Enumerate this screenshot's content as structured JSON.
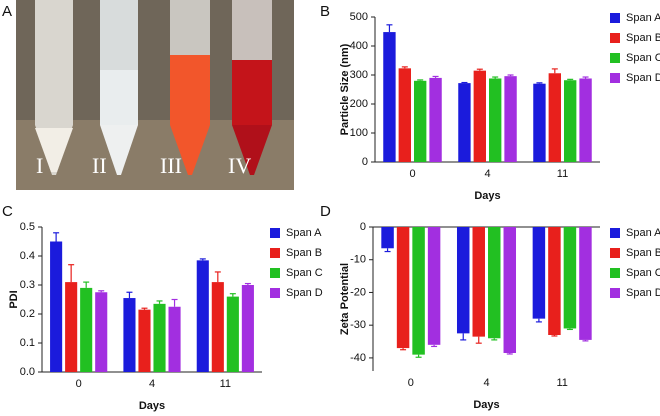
{
  "photo": {
    "panel_label": "A",
    "tube_labels": [
      "I",
      "II",
      "III",
      "IV"
    ]
  },
  "chart_data": [
    {
      "type": "bar",
      "panel_label": "B",
      "ylabel": "Particle Size (nm)",
      "xlabel": "Days",
      "categories": [
        "0",
        "4",
        "11"
      ],
      "ylim": [
        0,
        500
      ],
      "yticks": [
        0,
        100,
        200,
        300,
        400,
        500
      ],
      "series": [
        {
          "name": "Span A",
          "color": "#1b1bdc",
          "values": [
            448,
            272,
            270
          ],
          "errors": [
            25,
            2,
            3
          ]
        },
        {
          "name": "Span B",
          "color": "#e8201c",
          "values": [
            323,
            315,
            306
          ],
          "errors": [
            5,
            5,
            15
          ]
        },
        {
          "name": "Span C",
          "color": "#22c022",
          "values": [
            280,
            288,
            282
          ],
          "errors": [
            3,
            5,
            3
          ]
        },
        {
          "name": "Span D",
          "color": "#a22fe0",
          "values": [
            290,
            296,
            288
          ],
          "errors": [
            5,
            4,
            5
          ]
        }
      ]
    },
    {
      "type": "bar",
      "panel_label": "C",
      "ylabel": "PDI",
      "xlabel": "Days",
      "categories": [
        "0",
        "4",
        "11"
      ],
      "ylim": [
        0,
        0.5
      ],
      "yticks": [
        {
          "value": 0,
          "label": "0.0"
        },
        0.1,
        0.2,
        0.3,
        0.4,
        0.5
      ],
      "series": [
        {
          "name": "Span A",
          "color": "#1b1bdc",
          "values": [
            0.45,
            0.255,
            0.385
          ],
          "errors": [
            0.03,
            0.02,
            0.005
          ]
        },
        {
          "name": "Span B",
          "color": "#e8201c",
          "values": [
            0.31,
            0.215,
            0.31
          ],
          "errors": [
            0.06,
            0.005,
            0.035
          ]
        },
        {
          "name": "Span C",
          "color": "#22c022",
          "values": [
            0.29,
            0.235,
            0.26
          ],
          "errors": [
            0.02,
            0.01,
            0.01
          ]
        },
        {
          "name": "Span D",
          "color": "#a22fe0",
          "values": [
            0.275,
            0.225,
            0.3
          ],
          "errors": [
            0.005,
            0.025,
            0.005
          ]
        }
      ]
    },
    {
      "type": "bar",
      "panel_label": "D",
      "ylabel": "Zeta Potential",
      "xlabel": "Days",
      "categories": [
        "0",
        "4",
        "11"
      ],
      "ylim": [
        -44,
        0
      ],
      "yticks": [
        0,
        -10,
        -20,
        -30,
        -40
      ],
      "series": [
        {
          "name": "Span A",
          "color": "#1b1bdc",
          "values": [
            -6.5,
            -32.5,
            -28
          ],
          "errors": [
            1,
            2,
            1
          ]
        },
        {
          "name": "Span B",
          "color": "#e8201c",
          "values": [
            -37,
            -33.5,
            -33
          ],
          "errors": [
            0.5,
            2,
            0.3
          ]
        },
        {
          "name": "Span C",
          "color": "#22c022",
          "values": [
            -39,
            -34,
            -31
          ],
          "errors": [
            0.8,
            0.5,
            0.3
          ]
        },
        {
          "name": "Span D",
          "color": "#a22fe0",
          "values": [
            -36,
            -38.5,
            -34.5
          ],
          "errors": [
            0.5,
            0.3,
            0.3
          ]
        }
      ]
    }
  ]
}
